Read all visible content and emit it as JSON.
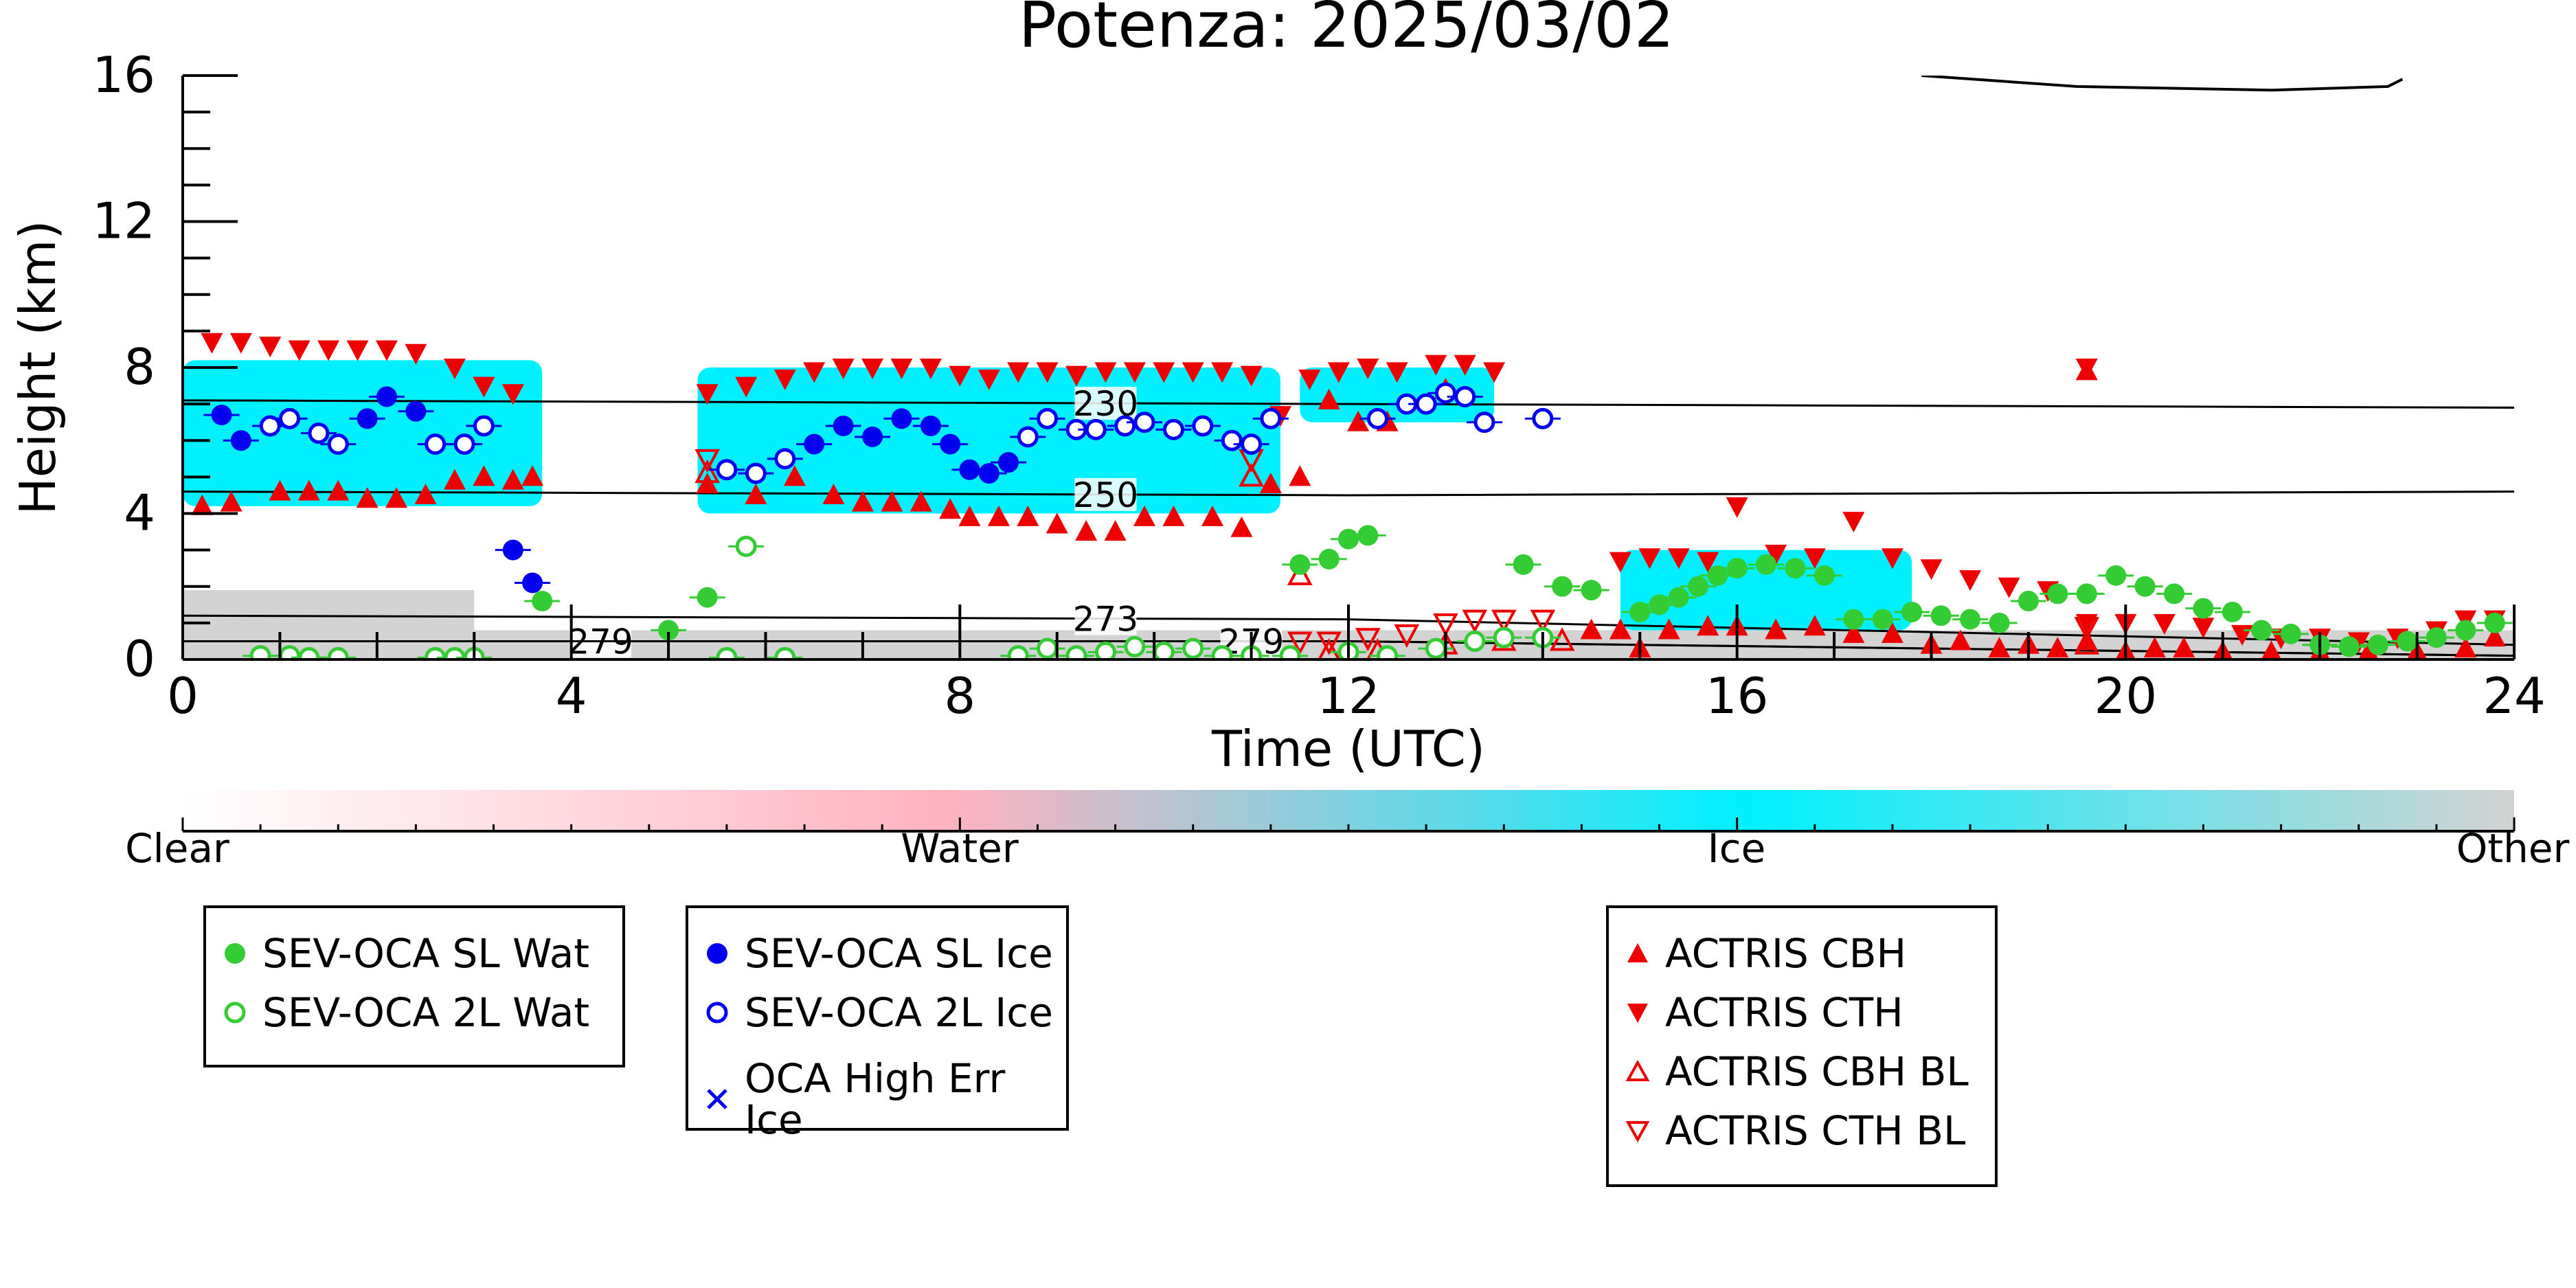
{
  "chart_data": {
    "type": "scatter",
    "title": "Potenza: 2025/03/02",
    "xlabel": "Time (UTC)",
    "ylabel": "Height (km)",
    "xlim": [
      0,
      24
    ],
    "ylim": [
      0,
      16
    ],
    "x_ticks": [
      "0",
      "4",
      "8",
      "12",
      "16",
      "20",
      "24"
    ],
    "y_ticks": [
      "0",
      "4",
      "8",
      "12",
      "16"
    ],
    "background_field": {
      "regions_ice": [
        {
          "x": [
            0,
            3.7
          ],
          "bottom": 4.2,
          "top": 8.2
        },
        {
          "x": [
            5.3,
            11.3
          ],
          "bottom": 4.0,
          "top": 8.0
        },
        {
          "x": [
            11.5,
            13.5
          ],
          "bottom": 6.5,
          "top": 8.0
        },
        {
          "x": [
            14.8,
            17.8
          ],
          "bottom": 0.8,
          "top": 3.0
        }
      ],
      "regions_other": [
        {
          "x": [
            0,
            3.0
          ],
          "bottom": 0,
          "top": 1.9
        },
        {
          "x": [
            3.0,
            24
          ],
          "bottom": 0,
          "top": 0.8
        }
      ]
    },
    "isotherms": [
      {
        "label": "230",
        "label_x": 9.5,
        "y": [
          7.1,
          7.0,
          6.9
        ]
      },
      {
        "label": "250",
        "label_x": 9.5,
        "y": [
          4.6,
          4.5,
          4.6
        ]
      },
      {
        "label": "273",
        "label_x": 9.5,
        "y": [
          1.2,
          1.1,
          0.4
        ]
      },
      {
        "label": "279",
        "label_x": 4.3,
        "y": [
          0.5,
          0.5,
          0.1
        ]
      },
      {
        "label": "279",
        "label_x": 11.0,
        "y": [
          0.5,
          0.5,
          0.1
        ]
      }
    ],
    "top_contour": [
      [
        17.9,
        16.0
      ],
      [
        19.5,
        15.7
      ],
      [
        21.5,
        15.6
      ],
      [
        22.7,
        15.7
      ],
      [
        22.85,
        15.9
      ]
    ],
    "series": [
      {
        "name": "SEV-OCA SL Wat",
        "marker": "filled-circle",
        "color": "#33cc33",
        "points": [
          [
            3.7,
            1.6
          ],
          [
            5.0,
            0.8
          ],
          [
            5.4,
            1.7
          ],
          [
            11.5,
            2.6
          ],
          [
            11.8,
            2.75
          ],
          [
            12.0,
            3.3
          ],
          [
            12.2,
            3.4
          ],
          [
            13.8,
            2.6
          ],
          [
            14.2,
            2.0
          ],
          [
            14.5,
            1.9
          ],
          [
            15.0,
            1.3
          ],
          [
            15.2,
            1.5
          ],
          [
            15.4,
            1.7
          ],
          [
            15.6,
            2.0
          ],
          [
            15.8,
            2.3
          ],
          [
            16.0,
            2.5
          ],
          [
            16.3,
            2.6
          ],
          [
            16.6,
            2.5
          ],
          [
            16.9,
            2.3
          ],
          [
            17.2,
            1.1
          ],
          [
            17.5,
            1.1
          ],
          [
            17.8,
            1.3
          ],
          [
            18.1,
            1.2
          ],
          [
            18.4,
            1.1
          ],
          [
            18.7,
            1.0
          ],
          [
            19.0,
            1.6
          ],
          [
            19.3,
            1.8
          ],
          [
            19.6,
            1.8
          ],
          [
            19.9,
            2.3
          ],
          [
            20.2,
            2.0
          ],
          [
            20.5,
            1.8
          ],
          [
            20.8,
            1.4
          ],
          [
            21.1,
            1.3
          ],
          [
            21.4,
            0.8
          ],
          [
            21.7,
            0.7
          ],
          [
            22.0,
            0.4
          ],
          [
            22.3,
            0.35
          ],
          [
            22.6,
            0.4
          ],
          [
            22.9,
            0.5
          ],
          [
            23.2,
            0.6
          ],
          [
            23.5,
            0.8
          ],
          [
            23.8,
            1.0
          ]
        ]
      },
      {
        "name": "SEV-OCA 2L Wat",
        "marker": "open-circle",
        "color": "#33cc33",
        "points": [
          [
            0.8,
            0.1
          ],
          [
            1.1,
            0.1
          ],
          [
            1.3,
            0.05
          ],
          [
            1.6,
            0.05
          ],
          [
            2.6,
            0.05
          ],
          [
            2.8,
            0.05
          ],
          [
            3.0,
            0.05
          ],
          [
            5.6,
            0.05
          ],
          [
            5.8,
            3.1
          ],
          [
            6.2,
            0.05
          ],
          [
            8.6,
            0.1
          ],
          [
            8.9,
            0.3
          ],
          [
            9.2,
            0.1
          ],
          [
            9.5,
            0.2
          ],
          [
            9.8,
            0.35
          ],
          [
            10.1,
            0.2
          ],
          [
            10.4,
            0.3
          ],
          [
            10.7,
            0.1
          ],
          [
            11.0,
            0.1
          ],
          [
            11.4,
            0.1
          ],
          [
            12.0,
            0.2
          ],
          [
            12.4,
            0.1
          ],
          [
            12.9,
            0.3
          ],
          [
            13.3,
            0.5
          ],
          [
            13.6,
            0.6
          ],
          [
            14.0,
            0.6
          ]
        ]
      },
      {
        "name": "SEV-OCA SL Ice",
        "marker": "filled-circle",
        "color": "#0000ee",
        "points": [
          [
            0.4,
            6.7
          ],
          [
            0.6,
            6.0
          ],
          [
            1.9,
            6.6
          ],
          [
            2.1,
            7.2
          ],
          [
            2.4,
            6.8
          ],
          [
            3.4,
            3.0
          ],
          [
            3.6,
            2.1
          ],
          [
            6.5,
            5.9
          ],
          [
            6.8,
            6.4
          ],
          [
            7.1,
            6.1
          ],
          [
            7.4,
            6.6
          ],
          [
            7.7,
            6.4
          ],
          [
            7.9,
            5.9
          ],
          [
            8.1,
            5.2
          ],
          [
            8.3,
            5.1
          ],
          [
            8.5,
            5.4
          ]
        ]
      },
      {
        "name": "SEV-OCA 2L Ice",
        "marker": "open-circle",
        "color": "#0000ee",
        "points": [
          [
            0.9,
            6.4
          ],
          [
            1.1,
            6.6
          ],
          [
            1.4,
            6.2
          ],
          [
            1.6,
            5.9
          ],
          [
            2.6,
            5.9
          ],
          [
            2.9,
            5.9
          ],
          [
            3.1,
            6.4
          ],
          [
            5.6,
            5.2
          ],
          [
            5.9,
            5.1
          ],
          [
            6.2,
            5.5
          ],
          [
            8.7,
            6.1
          ],
          [
            8.9,
            6.6
          ],
          [
            9.2,
            6.3
          ],
          [
            9.4,
            6.3
          ],
          [
            9.7,
            6.4
          ],
          [
            9.9,
            6.5
          ],
          [
            10.2,
            6.3
          ],
          [
            10.5,
            6.4
          ],
          [
            10.8,
            6.0
          ],
          [
            11.0,
            5.9
          ],
          [
            11.2,
            6.6
          ],
          [
            12.3,
            6.6
          ],
          [
            12.6,
            7.0
          ],
          [
            12.8,
            7.0
          ],
          [
            13.0,
            7.3
          ],
          [
            13.2,
            7.2
          ],
          [
            13.4,
            6.5
          ],
          [
            14.0,
            6.6
          ]
        ]
      },
      {
        "name": "OCA High Err Ice",
        "marker": "x",
        "color": "#0000ee",
        "points": []
      },
      {
        "name": "ACTRIS CBH",
        "marker": "filled-triangle-up",
        "color": "#ee0000",
        "points": [
          [
            0.2,
            4.2
          ],
          [
            0.5,
            4.3
          ],
          [
            1.0,
            4.6
          ],
          [
            1.3,
            4.6
          ],
          [
            1.6,
            4.6
          ],
          [
            1.9,
            4.4
          ],
          [
            2.2,
            4.4
          ],
          [
            2.5,
            4.5
          ],
          [
            2.8,
            4.9
          ],
          [
            3.1,
            5.0
          ],
          [
            3.4,
            4.9
          ],
          [
            3.6,
            5.0
          ],
          [
            5.4,
            4.8
          ],
          [
            5.9,
            4.5
          ],
          [
            6.3,
            5.0
          ],
          [
            6.7,
            4.5
          ],
          [
            7.0,
            4.3
          ],
          [
            7.3,
            4.3
          ],
          [
            7.6,
            4.3
          ],
          [
            7.9,
            4.1
          ],
          [
            8.1,
            3.9
          ],
          [
            8.4,
            3.9
          ],
          [
            8.7,
            3.9
          ],
          [
            9.0,
            3.7
          ],
          [
            9.3,
            3.5
          ],
          [
            9.6,
            3.5
          ],
          [
            9.9,
            3.9
          ],
          [
            10.2,
            3.9
          ],
          [
            10.6,
            3.9
          ],
          [
            10.9,
            3.6
          ],
          [
            11.2,
            4.8
          ],
          [
            11.5,
            5.0
          ],
          [
            11.8,
            7.1
          ],
          [
            12.1,
            6.5
          ],
          [
            12.4,
            6.5
          ],
          [
            13.0,
            7.4
          ],
          [
            14.5,
            0.8
          ],
          [
            14.8,
            0.8
          ],
          [
            15.0,
            0.3
          ],
          [
            15.3,
            0.8
          ],
          [
            15.7,
            0.9
          ],
          [
            16.0,
            0.9
          ],
          [
            16.4,
            0.8
          ],
          [
            16.8,
            0.9
          ],
          [
            17.2,
            0.7
          ],
          [
            17.6,
            0.7
          ],
          [
            18.0,
            0.4
          ],
          [
            18.3,
            0.5
          ],
          [
            18.7,
            0.3
          ],
          [
            19.0,
            0.4
          ],
          [
            19.3,
            0.3
          ],
          [
            19.6,
            7.9
          ],
          [
            19.6,
            0.5
          ],
          [
            20.0,
            0.2
          ],
          [
            20.3,
            0.3
          ],
          [
            20.6,
            0.3
          ],
          [
            21.0,
            0.2
          ],
          [
            21.5,
            0.2
          ],
          [
            22.0,
            0.2
          ],
          [
            22.5,
            0.2
          ],
          [
            23.0,
            0.2
          ],
          [
            23.5,
            0.3
          ],
          [
            23.8,
            0.6
          ]
        ]
      },
      {
        "name": "ACTRIS CTH",
        "marker": "filled-triangle-down",
        "color": "#ee0000",
        "points": [
          [
            0.3,
            8.7
          ],
          [
            0.6,
            8.7
          ],
          [
            0.9,
            8.6
          ],
          [
            1.2,
            8.5
          ],
          [
            1.5,
            8.5
          ],
          [
            1.8,
            8.5
          ],
          [
            2.1,
            8.5
          ],
          [
            2.4,
            8.4
          ],
          [
            2.8,
            8.0
          ],
          [
            3.1,
            7.5
          ],
          [
            3.4,
            7.3
          ],
          [
            5.4,
            7.3
          ],
          [
            5.8,
            7.5
          ],
          [
            6.2,
            7.7
          ],
          [
            6.5,
            7.9
          ],
          [
            6.8,
            8.0
          ],
          [
            7.1,
            8.0
          ],
          [
            7.4,
            8.0
          ],
          [
            7.7,
            8.0
          ],
          [
            8.0,
            7.8
          ],
          [
            8.3,
            7.7
          ],
          [
            8.6,
            7.9
          ],
          [
            8.9,
            7.9
          ],
          [
            9.2,
            7.8
          ],
          [
            9.5,
            7.9
          ],
          [
            9.8,
            7.9
          ],
          [
            10.1,
            7.9
          ],
          [
            10.4,
            7.9
          ],
          [
            10.7,
            7.9
          ],
          [
            11.0,
            7.8
          ],
          [
            11.3,
            6.7
          ],
          [
            11.6,
            7.7
          ],
          [
            11.9,
            7.9
          ],
          [
            12.2,
            8.0
          ],
          [
            12.5,
            7.9
          ],
          [
            12.9,
            8.1
          ],
          [
            13.2,
            8.1
          ],
          [
            13.5,
            7.9
          ],
          [
            14.8,
            2.7
          ],
          [
            15.1,
            2.8
          ],
          [
            15.4,
            2.8
          ],
          [
            15.7,
            2.7
          ],
          [
            16.0,
            4.2
          ],
          [
            16.4,
            2.9
          ],
          [
            16.8,
            2.8
          ],
          [
            17.2,
            3.8
          ],
          [
            17.6,
            2.8
          ],
          [
            18.0,
            2.5
          ],
          [
            18.4,
            2.2
          ],
          [
            18.8,
            2.0
          ],
          [
            19.2,
            1.9
          ],
          [
            19.6,
            8.0
          ],
          [
            19.6,
            1.0
          ],
          [
            20.0,
            1.0
          ],
          [
            20.4,
            1.0
          ],
          [
            20.8,
            0.9
          ],
          [
            21.2,
            0.7
          ],
          [
            21.6,
            0.6
          ],
          [
            22.0,
            0.6
          ],
          [
            22.4,
            0.5
          ],
          [
            22.8,
            0.6
          ],
          [
            23.2,
            0.8
          ],
          [
            23.5,
            1.1
          ],
          [
            23.8,
            1.1
          ]
        ]
      },
      {
        "name": "ACTRIS CBH BL",
        "marker": "open-triangle-up",
        "color": "#ee0000",
        "points": [
          [
            5.4,
            5.1
          ],
          [
            11.0,
            5.0
          ],
          [
            11.5,
            2.3
          ],
          [
            11.8,
            0.2
          ],
          [
            12.3,
            0.2
          ],
          [
            13.0,
            0.4
          ],
          [
            13.6,
            0.5
          ],
          [
            14.2,
            0.5
          ],
          [
            19.6,
            0.4
          ]
        ]
      },
      {
        "name": "ACTRIS CTH BL",
        "marker": "open-triangle-down",
        "color": "#ee0000",
        "points": [
          [
            5.4,
            5.5
          ],
          [
            11.0,
            5.5
          ],
          [
            11.5,
            0.5
          ],
          [
            11.8,
            0.5
          ],
          [
            12.2,
            0.6
          ],
          [
            12.6,
            0.7
          ],
          [
            13.0,
            1.0
          ],
          [
            13.3,
            1.1
          ],
          [
            13.6,
            1.1
          ],
          [
            14.0,
            1.1
          ],
          [
            19.6,
            0.9
          ]
        ]
      }
    ],
    "legend_placement": "below",
    "grid": false,
    "colorbar": {
      "labels": [
        "Clear",
        "Water",
        "Ice",
        "Other"
      ],
      "colors": [
        "#ffffff",
        "#ffb2c0",
        "#00f0ff",
        "#d3d3d3"
      ]
    }
  },
  "legend": {
    "group1": [
      "SEV-OCA SL Wat",
      "SEV-OCA 2L Wat"
    ],
    "group2": [
      "SEV-OCA SL Ice",
      "SEV-OCA 2L Ice",
      "OCA High Err Ice"
    ],
    "group3": [
      "ACTRIS CBH",
      "ACTRIS CTH",
      "ACTRIS CBH BL",
      "ACTRIS CTH BL"
    ]
  },
  "colors": {
    "water_marker": "#33cc33",
    "ice_marker": "#0000ee",
    "actris_marker": "#ee0000",
    "ice_fill": "#00f0ff",
    "other_fill": "#d3d3d3",
    "water_fill": "#ffb2c0"
  }
}
